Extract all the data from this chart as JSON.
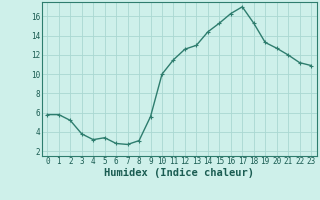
{
  "x": [
    0,
    1,
    2,
    3,
    4,
    5,
    6,
    7,
    8,
    9,
    10,
    11,
    12,
    13,
    14,
    15,
    16,
    17,
    18,
    19,
    20,
    21,
    22,
    23
  ],
  "y": [
    5.8,
    5.8,
    5.2,
    3.8,
    3.2,
    3.4,
    2.8,
    2.7,
    3.1,
    5.6,
    10.0,
    11.5,
    12.6,
    13.0,
    14.4,
    15.3,
    16.3,
    17.0,
    15.3,
    13.3,
    12.7,
    12.0,
    11.2,
    10.9
  ],
  "line_color": "#2e7d6e",
  "marker": "+",
  "bg_color": "#cef0ea",
  "grid_color": "#aad8d2",
  "xlabel": "Humidex (Indice chaleur)",
  "xlim": [
    -0.5,
    23.5
  ],
  "ylim": [
    1.5,
    17.5
  ],
  "yticks": [
    2,
    4,
    6,
    8,
    10,
    12,
    14,
    16
  ],
  "xticks": [
    0,
    1,
    2,
    3,
    4,
    5,
    6,
    7,
    8,
    9,
    10,
    11,
    12,
    13,
    14,
    15,
    16,
    17,
    18,
    19,
    20,
    21,
    22,
    23
  ],
  "tick_fontsize": 5.5,
  "xlabel_fontsize": 7.5,
  "line_width": 1.0,
  "marker_size": 3.5,
  "marker_ew": 0.8
}
